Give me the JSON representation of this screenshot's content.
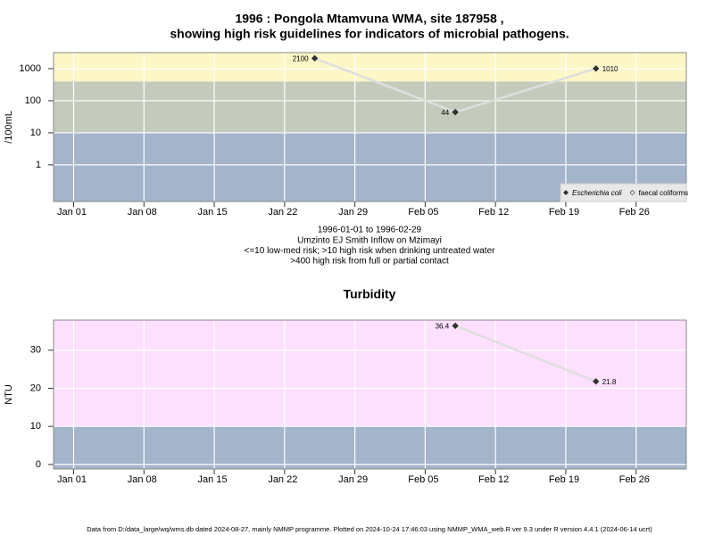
{
  "title": "1996 : Pongola Mtamvuna WMA, site 187958 ,",
  "subtitle": "showing high risk guidelines for indicators of microbial pathogens.",
  "footer": "Data from D:/data_large/wq/wms.db dated 2024-08-27, mainly NMMP programme. Plotted on 2024-10-24 17:46:03 using NMMP_WMA_web.R ver 9.3 under R version 4.4.1 (2024-06-14 ucrt)",
  "chart_data": [
    {
      "type": "line",
      "ylabel": "/100mL",
      "log_y": true,
      "grid": true,
      "notes": [
        "1996-01-01 to 1996-02-29",
        "Umzinto EJ Smith Inflow on Mzimayi",
        "<=10 low-med risk; >10 high risk when drinking untreated water",
        ">400 high risk from full or partial contact"
      ],
      "x": [
        "1996-01-25",
        "1996-02-08",
        "1996-02-22"
      ],
      "series": [
        {
          "name": "Escherichia coli",
          "color": "#333333",
          "values": [
            2100,
            44,
            1010
          ]
        },
        {
          "name": "faecal coliforms",
          "color": "#ffffff",
          "values": [
            null,
            null,
            null
          ]
        }
      ],
      "line_color": "#dedede",
      "bands": [
        {
          "to": 10,
          "color": "#a3b4cb"
        },
        {
          "to": 400,
          "color": "#c4cbbd"
        },
        {
          "to": 3160,
          "color": "#fdf6c6"
        }
      ],
      "xlim": [
        "1995-12-30",
        "1996-03-02"
      ],
      "xticks": [
        {
          "value": "1996-01-01",
          "label": "Jan 01"
        },
        {
          "value": "1996-01-08",
          "label": "Jan 08"
        },
        {
          "value": "1996-01-15",
          "label": "Jan 15"
        },
        {
          "value": "1996-01-22",
          "label": "Jan 22"
        },
        {
          "value": "1996-01-29",
          "label": "Jan 29"
        },
        {
          "value": "1996-02-05",
          "label": "Feb 05"
        },
        {
          "value": "1996-02-12",
          "label": "Feb 12"
        },
        {
          "value": "1996-02-19",
          "label": "Feb 19"
        },
        {
          "value": "1996-02-26",
          "label": "Feb 26"
        }
      ],
      "ylim": [
        0.072,
        3160
      ],
      "yticks": [
        1,
        10,
        100,
        1000
      ],
      "legend": "bottom-right"
    },
    {
      "type": "line",
      "title": "Turbidity",
      "ylabel": "NTU",
      "log_y": false,
      "grid": true,
      "x": [
        "1996-02-08",
        "1996-02-22"
      ],
      "series": [
        {
          "name": "Turbidity",
          "color": "#333333",
          "values": [
            36.4,
            21.8
          ]
        }
      ],
      "line_color": "#dedede",
      "bands": [
        {
          "to": 10,
          "color": "#a3b4cb"
        },
        {
          "to": 37.9,
          "color": "#fde0fd"
        }
      ],
      "xlim": [
        "1995-12-30",
        "1996-03-02"
      ],
      "xticks": [
        {
          "value": "1996-01-01",
          "label": "Jan 01"
        },
        {
          "value": "1996-01-08",
          "label": "Jan 08"
        },
        {
          "value": "1996-01-15",
          "label": "Jan 15"
        },
        {
          "value": "1996-01-22",
          "label": "Jan 22"
        },
        {
          "value": "1996-01-29",
          "label": "Jan 29"
        },
        {
          "value": "1996-02-05",
          "label": "Feb 05"
        },
        {
          "value": "1996-02-12",
          "label": "Feb 12"
        },
        {
          "value": "1996-02-19",
          "label": "Feb 19"
        },
        {
          "value": "1996-02-26",
          "label": "Feb 26"
        }
      ],
      "ylim": [
        -1.2,
        37.9
      ],
      "yticks": [
        0,
        10,
        20,
        30
      ]
    }
  ]
}
